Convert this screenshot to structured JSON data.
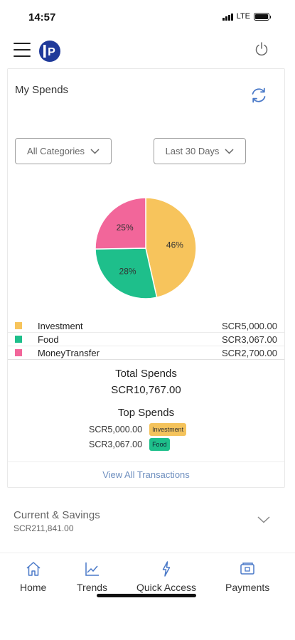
{
  "status_bar": {
    "time": "14:57",
    "network": "LTE"
  },
  "app": {
    "logo_text": "P"
  },
  "spends": {
    "title": "My Spends",
    "category_filter": "All Categories",
    "period_filter": "Last 30 Days",
    "legend": [
      {
        "label": "Investment",
        "amount": "SCR5,000.00",
        "color": "#f7c45c"
      },
      {
        "label": "Food",
        "amount": "SCR3,067.00",
        "color": "#1ebf8b"
      },
      {
        "label": "MoneyTransfer",
        "amount": "SCR2,700.00",
        "color": "#f2669a"
      }
    ],
    "total_title": "Total Spends",
    "total_value": "SCR10,767.00",
    "top_title": "Top Spends",
    "top": [
      {
        "amount": "SCR5,000.00",
        "category": "Investment"
      },
      {
        "amount": "SCR3,067.00",
        "category": "Food"
      }
    ],
    "view_all": "View All Transactions"
  },
  "chart_data": {
    "type": "pie",
    "labels": [
      "Investment",
      "Food",
      "MoneyTransfer"
    ],
    "values": [
      46,
      28,
      25
    ],
    "slice_labels": [
      "46%",
      "28%",
      "25%"
    ],
    "colors": [
      "#f7c45c",
      "#1ebf8b",
      "#f2669a"
    ]
  },
  "accounts": {
    "title": "Current & Savings",
    "amount": "SCR211,841.00"
  },
  "nav": {
    "home": "Home",
    "trends": "Trends",
    "quick_access": "Quick Access",
    "payments": "Payments"
  },
  "colors": {
    "accent": "#1f3a9a",
    "link": "#6e8fbf"
  }
}
